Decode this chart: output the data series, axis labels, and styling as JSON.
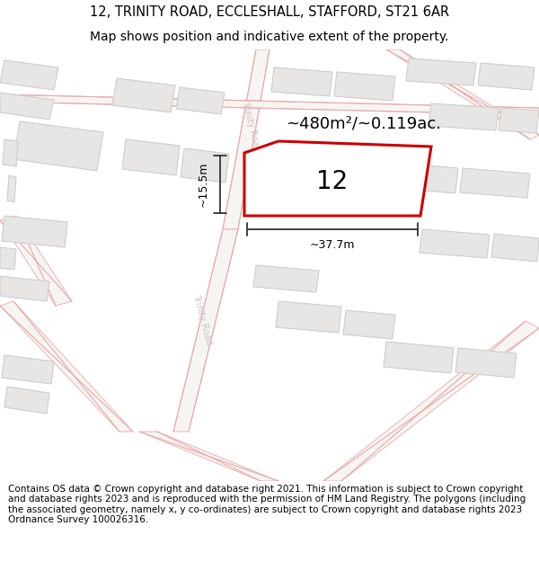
{
  "title_line1": "12, TRINITY ROAD, ECCLESHALL, STAFFORD, ST21 6AR",
  "title_line2": "Map shows position and indicative extent of the property.",
  "footer_text": "Contains OS data © Crown copyright and database right 2021. This information is subject to Crown copyright and database rights 2023 and is reproduced with the permission of HM Land Registry. The polygons (including the associated geometry, namely x, y co-ordinates) are subject to Crown copyright and database rights 2023 Ordnance Survey 100026316.",
  "bg_color": "#ffffff",
  "map_bg": "#f7f5f2",
  "road_color": "#fce8e8",
  "road_stroke": "#e8a8a8",
  "building_fill": "#e8e6e4",
  "building_stroke": "#d0cdcb",
  "highlight_fill": "#ffffff",
  "highlight_stroke": "#cc0000",
  "road_label_color": "#c8c4be",
  "area_text": "~480m²/~0.119ac.",
  "number_text": "12",
  "dim_width": "~37.7m",
  "dim_height": "~15.5m",
  "title_fontsize": 10.5,
  "subtitle_fontsize": 10,
  "footer_fontsize": 7.5
}
